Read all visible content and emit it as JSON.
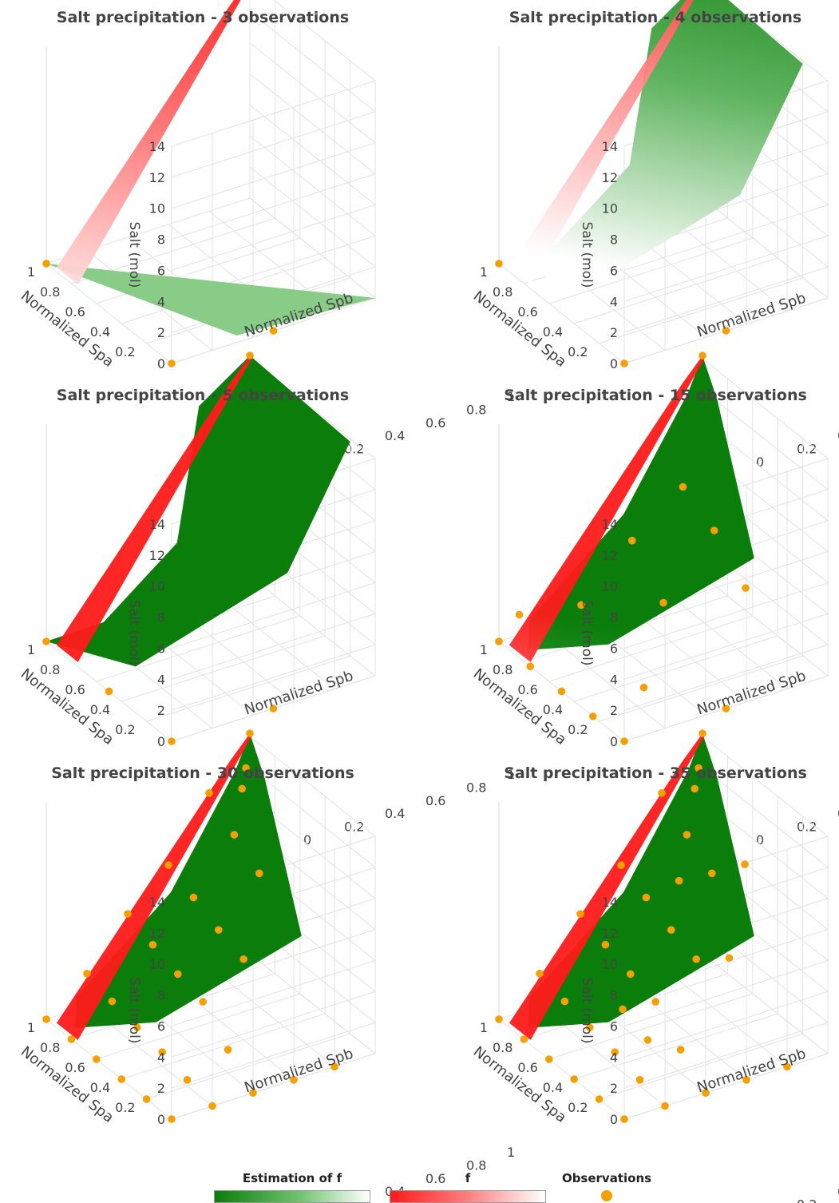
{
  "colors": {
    "estimation_dark": "#0a7d0a",
    "estimation_light": "#ffffff",
    "f_dark": "#ff1a1a",
    "f_light": "#ffffff",
    "observation": "#f5a000",
    "grid": "#e3e3e3",
    "text": "#444444",
    "title": "#444444"
  },
  "chart_data": [
    {
      "type": "surface3d",
      "title": "Salt precipitation - 3 observations",
      "xlabel": "Normalized Spa",
      "ylabel": "Normalized Spb",
      "zlabel": "Salt (mol)",
      "xticks": [
        "0.2",
        "0.4",
        "0.6",
        "0.8",
        "1"
      ],
      "yticks": [
        "0",
        "0.2",
        "0.4",
        "0.6",
        "0.8",
        "1"
      ],
      "zticks": [
        "0",
        "2",
        "4",
        "6",
        "8",
        "10",
        "12",
        "14"
      ],
      "zlim": [
        0,
        14
      ],
      "estimation_shape": "flat",
      "observations": [
        [
          0,
          0,
          0
        ],
        [
          0,
          0.5,
          0
        ],
        [
          1,
          0,
          0
        ]
      ]
    },
    {
      "type": "surface3d",
      "title": "Salt precipitation - 4 observations",
      "xlabel": "Normalized Spa",
      "ylabel": "Normalized Spb",
      "zlabel": "Salt (mol)",
      "xticks": [
        "0.2",
        "0.4",
        "0.6",
        "0.8",
        "1"
      ],
      "yticks": [
        "0",
        "0.2",
        "0.4",
        "0.6",
        "0.8",
        "1"
      ],
      "zticks": [
        "0",
        "2",
        "4",
        "6",
        "8",
        "10",
        "12",
        "14"
      ],
      "zlim": [
        0,
        14
      ],
      "estimation_shape": "bump",
      "observations": [
        [
          0,
          0,
          0
        ],
        [
          0,
          0.5,
          0
        ],
        [
          1,
          0,
          0
        ],
        [
          1,
          1,
          14.2
        ]
      ]
    },
    {
      "type": "surface3d",
      "title": "Salt precipitation - 5 observations",
      "xlabel": "Normalized Spa",
      "ylabel": "Normalized Spb",
      "zlabel": "Salt (mol)",
      "xticks": [
        "0.2",
        "0.4",
        "0.6",
        "0.8",
        "1"
      ],
      "yticks": [
        "0",
        "0.2",
        "0.4",
        "0.6",
        "0.8",
        "1"
      ],
      "zticks": [
        "0",
        "2",
        "4",
        "6",
        "8",
        "10",
        "12",
        "14"
      ],
      "zlim": [
        0,
        14
      ],
      "estimation_shape": "bump",
      "observations": [
        [
          0,
          0,
          0
        ],
        [
          0,
          0.5,
          0
        ],
        [
          0.5,
          0,
          0
        ],
        [
          1,
          0,
          0
        ],
        [
          1,
          1,
          14.2
        ]
      ]
    },
    {
      "type": "surface3d",
      "title": "Salt precipitation - 15 observations",
      "xlabel": "Normalized Spa",
      "ylabel": "Normalized Spb",
      "zlabel": "Salt (mol)",
      "xticks": [
        "0.2",
        "0.4",
        "0.6",
        "0.8",
        "1"
      ],
      "yticks": [
        "0",
        "0.2",
        "0.4",
        "0.6",
        "0.8",
        "1"
      ],
      "zticks": [
        "0",
        "2",
        "4",
        "6",
        "8",
        "10",
        "12",
        "14"
      ],
      "zlim": [
        0,
        14
      ],
      "estimation_shape": "close",
      "observations": [
        [
          0,
          0,
          0
        ],
        [
          0,
          0.5,
          0
        ],
        [
          0.25,
          0,
          0
        ],
        [
          0.25,
          0.25,
          0.8
        ],
        [
          0.5,
          0,
          0
        ],
        [
          0.5,
          0.5,
          3.6
        ],
        [
          0.75,
          0,
          0
        ],
        [
          0.75,
          0.25,
          2.9
        ],
        [
          1,
          0,
          0
        ],
        [
          1,
          0.1,
          1.3
        ],
        [
          0.5,
          0.75,
          7.2
        ],
        [
          0.75,
          0.75,
          8.4
        ],
        [
          0.25,
          0.75,
          5.1
        ],
        [
          0.75,
          0.5,
          6.0
        ],
        [
          1,
          1,
          14.2
        ]
      ]
    },
    {
      "type": "surface3d",
      "title": "Salt precipitation - 30 observations",
      "xlabel": "Normalized Spa",
      "ylabel": "Normalized Spb",
      "zlabel": "Salt (mol)",
      "xticks": [
        "0.2",
        "0.4",
        "0.6",
        "0.8",
        "1"
      ],
      "yticks": [
        "0",
        "0.2",
        "0.4",
        "0.6",
        "0.8",
        "1"
      ],
      "zticks": [
        "0",
        "2",
        "4",
        "6",
        "8",
        "10",
        "12",
        "14"
      ],
      "zlim": [
        0,
        14
      ],
      "estimation_shape": "close",
      "observations": [
        [
          0,
          0,
          0
        ],
        [
          0,
          0.2,
          0
        ],
        [
          0,
          0.4,
          0
        ],
        [
          0,
          0.6,
          0
        ],
        [
          0,
          0.8,
          0
        ],
        [
          0.2,
          0,
          0
        ],
        [
          0.4,
          0,
          0
        ],
        [
          0.6,
          0,
          0
        ],
        [
          0.8,
          0,
          0
        ],
        [
          1,
          0,
          0
        ],
        [
          0.2,
          0.2,
          0.4
        ],
        [
          0.4,
          0.2,
          0.9
        ],
        [
          0.6,
          0.2,
          1.2
        ],
        [
          0.8,
          0.2,
          1.6
        ],
        [
          1,
          0.2,
          2.1
        ],
        [
          0.2,
          0.4,
          1.5
        ],
        [
          0.4,
          0.4,
          3.3
        ],
        [
          0.6,
          0.4,
          3.8
        ],
        [
          0.8,
          0.4,
          4.4
        ],
        [
          1,
          0.4,
          5.1
        ],
        [
          0.4,
          0.6,
          5.2
        ],
        [
          0.6,
          0.6,
          5.8
        ],
        [
          0.8,
          0.6,
          6.6
        ],
        [
          1,
          0.6,
          7.4
        ],
        [
          0.6,
          0.8,
          8.6
        ],
        [
          0.8,
          0.8,
          9.8
        ],
        [
          1,
          0.8,
          11.2
        ],
        [
          0.9,
          0.9,
          11.7
        ],
        [
          0.95,
          0.95,
          12.5
        ],
        [
          1,
          1,
          14.2
        ]
      ]
    },
    {
      "type": "surface3d",
      "title": "Salt precipitation - 35 observations",
      "xlabel": "Normalized Spa",
      "ylabel": "Normalized Spb",
      "zlabel": "Salt (mol)",
      "xticks": [
        "0.2",
        "0.4",
        "0.6",
        "0.8",
        "1"
      ],
      "yticks": [
        "0",
        "0.2",
        "0.4",
        "0.6",
        "0.8",
        "1"
      ],
      "zticks": [
        "0",
        "2",
        "4",
        "6",
        "8",
        "10",
        "12",
        "14"
      ],
      "zlim": [
        0,
        14
      ],
      "estimation_shape": "close",
      "observations": [
        [
          0,
          0,
          0
        ],
        [
          0,
          0.2,
          0
        ],
        [
          0,
          0.4,
          0
        ],
        [
          0,
          0.6,
          0
        ],
        [
          0,
          0.8,
          0
        ],
        [
          0.2,
          0,
          0
        ],
        [
          0.4,
          0,
          0
        ],
        [
          0.6,
          0,
          0
        ],
        [
          0.8,
          0,
          0
        ],
        [
          1,
          0,
          0
        ],
        [
          0.2,
          0.2,
          0.4
        ],
        [
          0.4,
          0.2,
          0.9
        ],
        [
          0.6,
          0.2,
          1.2
        ],
        [
          0.8,
          0.2,
          1.6
        ],
        [
          1,
          0.2,
          2.1
        ],
        [
          0.2,
          0.4,
          1.5
        ],
        [
          0.4,
          0.4,
          3.3
        ],
        [
          0.6,
          0.4,
          3.8
        ],
        [
          0.8,
          0.4,
          4.4
        ],
        [
          1,
          0.4,
          5.1
        ],
        [
          0.4,
          0.6,
          5.2
        ],
        [
          0.6,
          0.6,
          5.8
        ],
        [
          0.8,
          0.6,
          6.6
        ],
        [
          1,
          0.6,
          7.4
        ],
        [
          0.6,
          0.8,
          8.6
        ],
        [
          0.8,
          0.8,
          9.8
        ],
        [
          1,
          0.8,
          11.2
        ],
        [
          0.9,
          0.9,
          11.7
        ],
        [
          0.95,
          0.95,
          12.5
        ],
        [
          0.3,
          0.3,
          1.9
        ],
        [
          0.5,
          0.3,
          2.6
        ],
        [
          0.7,
          0.7,
          7.9
        ],
        [
          0.3,
          0.7,
          5.5
        ],
        [
          0.5,
          0.9,
          9.4
        ],
        [
          1,
          1,
          14.2
        ]
      ]
    }
  ],
  "legend": {
    "estimation_title": "Estimation of f",
    "f_title": "f",
    "observations_title": "Observations"
  }
}
